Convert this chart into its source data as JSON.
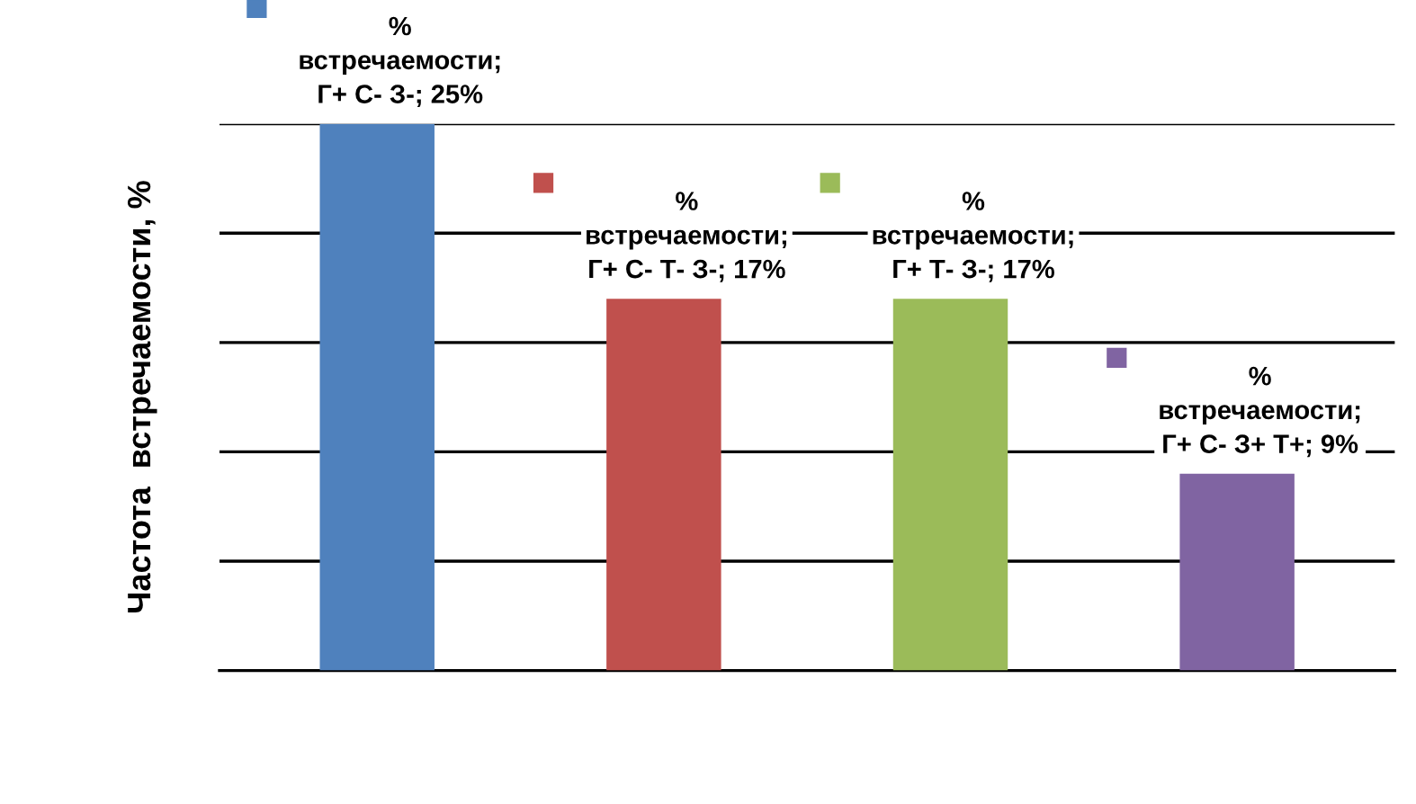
{
  "chart_data": {
    "type": "bar",
    "ylabel": "Частота  встречаемости, %",
    "categories": [
      null,
      null,
      null,
      null
    ],
    "values": [
      25,
      17,
      17,
      9
    ],
    "colors": [
      "#4f81bd",
      "#c0504d",
      "#9bbb59",
      "#8064a2"
    ],
    "value_labels": [
      "%\nвстречаемости;\nГ+ С- З-; 25%",
      "%\nвстречаемости;\nГ+ С- Т- З-; 17%",
      "%\nвстречаемости;\nГ+ Т- З-; 17%",
      "%\nвстречаемости;\nГ+ С- З+ Т+; 9%"
    ],
    "ylim": [
      0,
      25
    ],
    "yticks": [
      {
        "value": 0,
        "label": null
      },
      {
        "value": 5,
        "label": null
      },
      {
        "value": 10,
        "label": null
      },
      {
        "value": 15,
        "label": null
      },
      {
        "value": 20,
        "label": null
      },
      {
        "value": 25,
        "label": null
      }
    ],
    "grid": "y",
    "tick_labels": false
  }
}
